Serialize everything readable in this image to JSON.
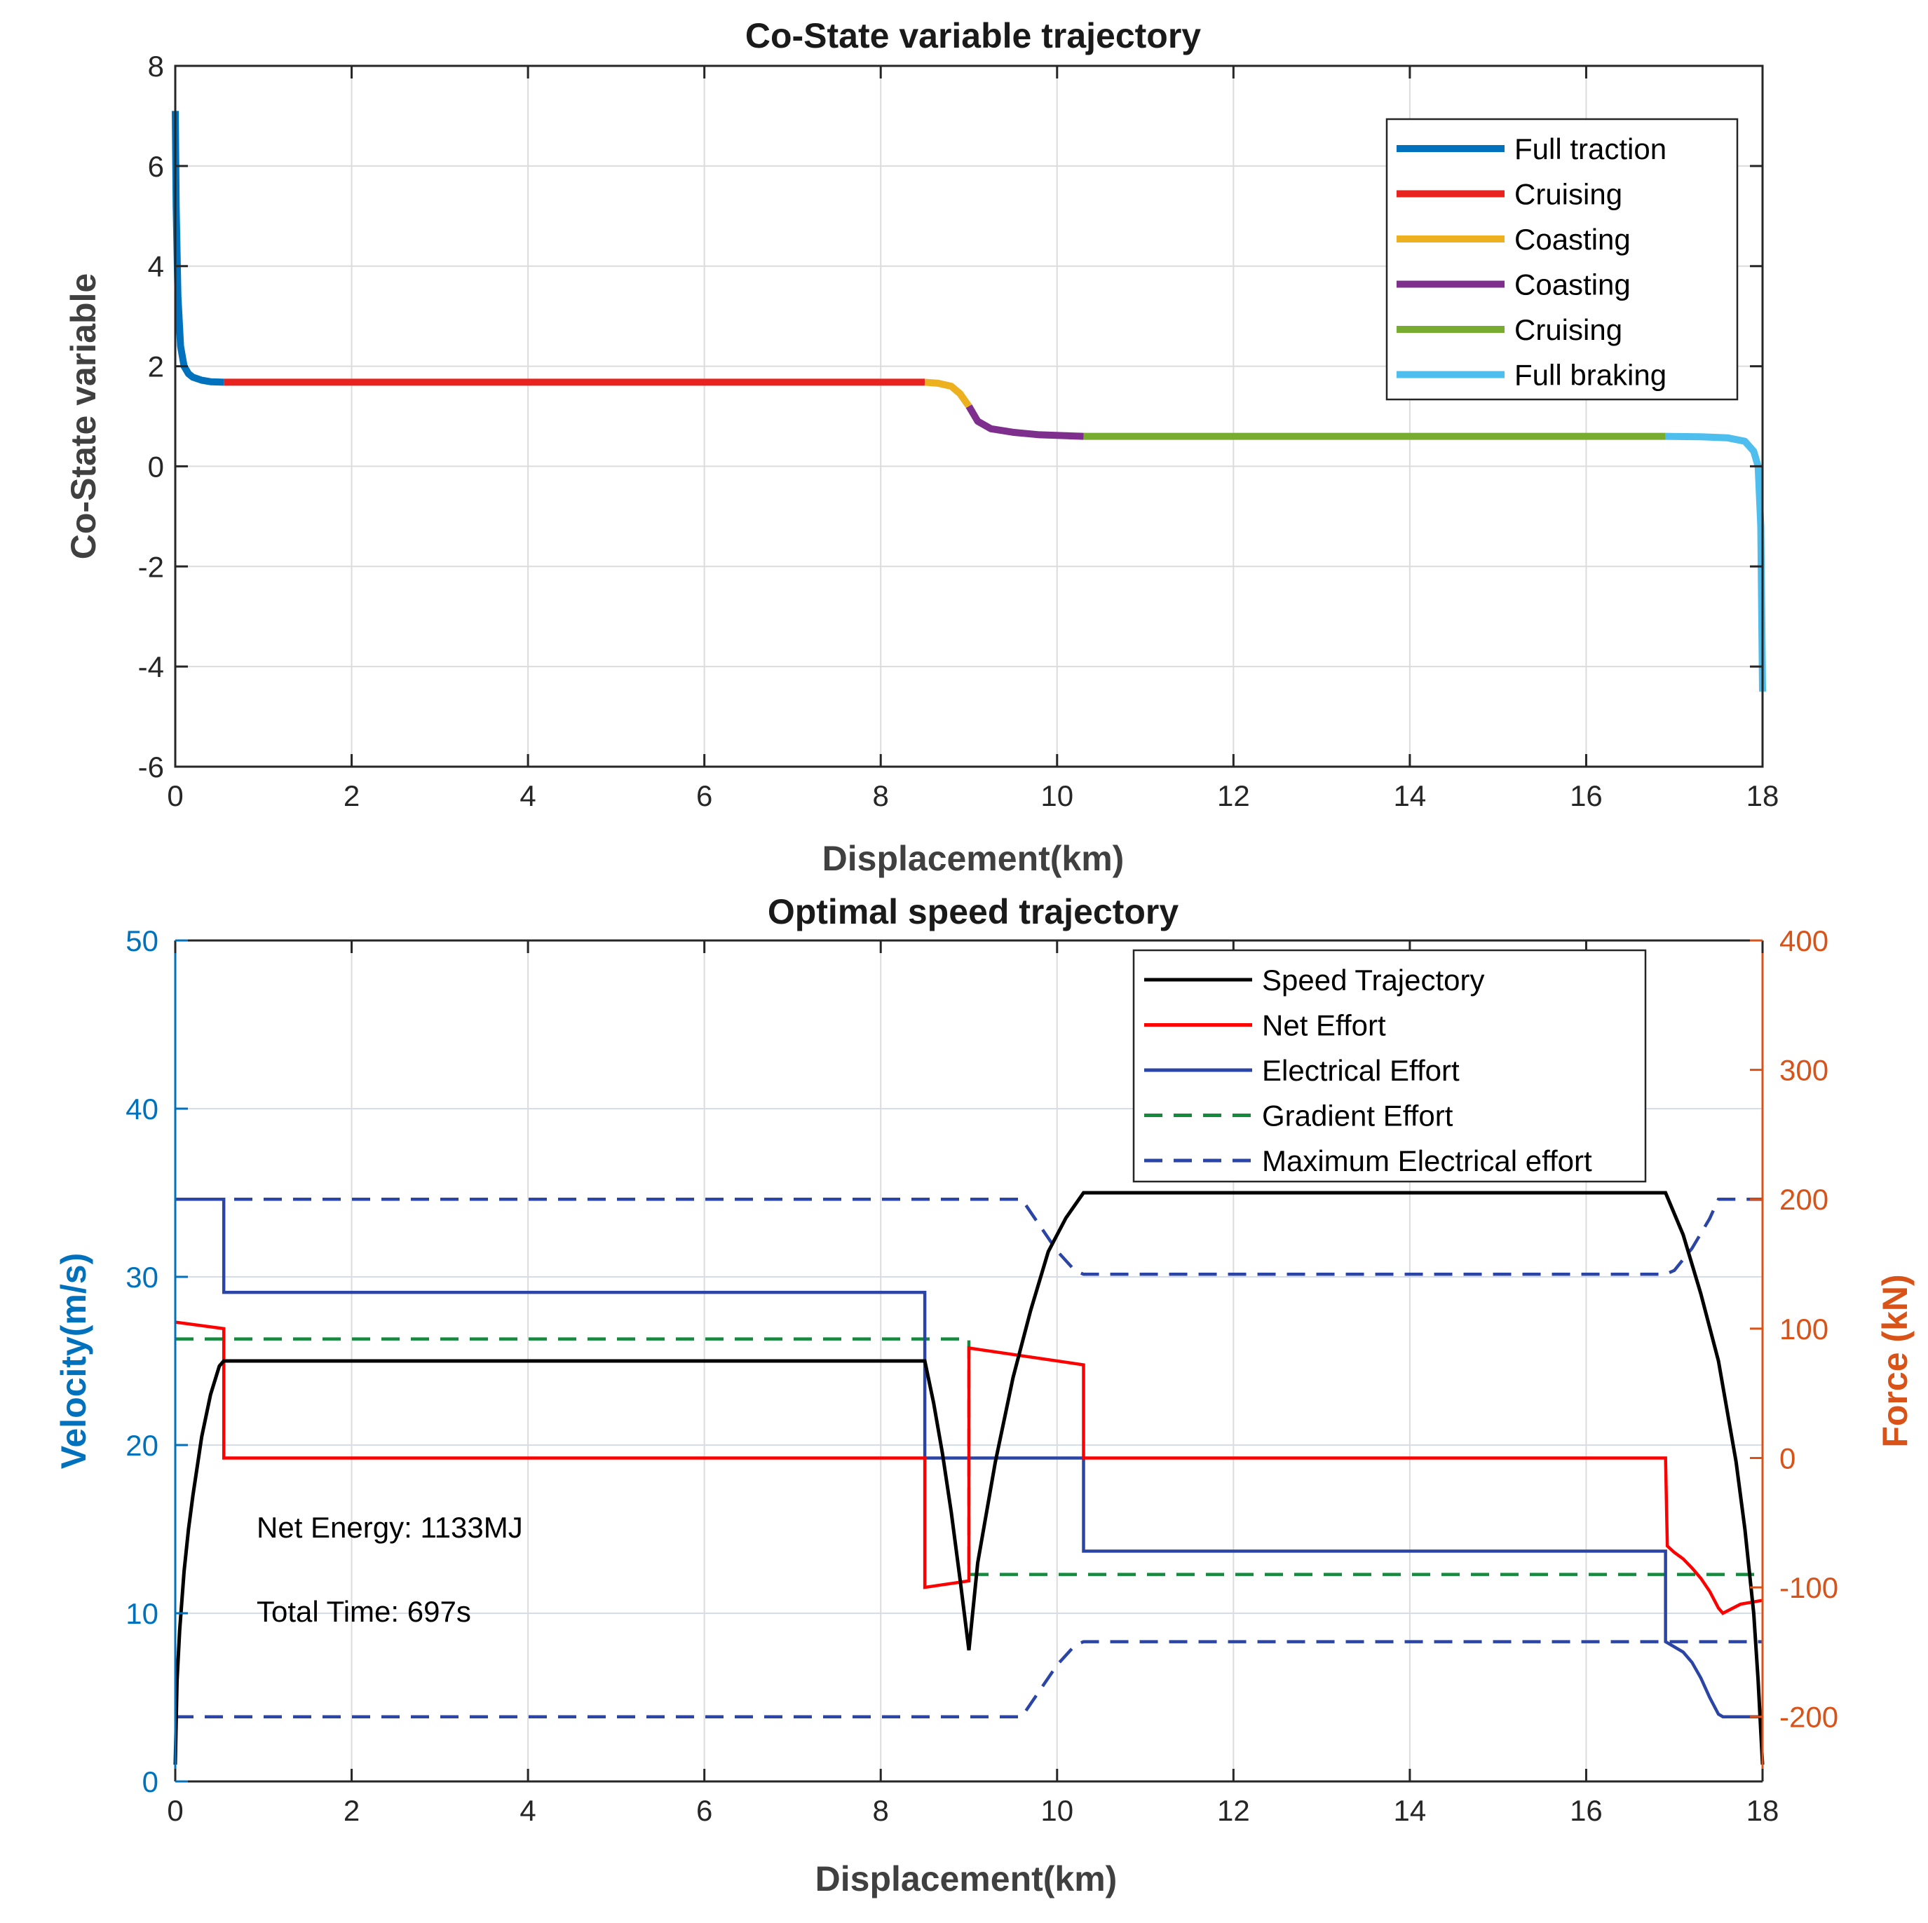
{
  "chart_data": [
    {
      "type": "line",
      "title": "Co-State variable trajectory",
      "xlabel": "Displacement(km)",
      "ylabel": "Co-State variable",
      "xlim": [
        0,
        18
      ],
      "ylim": [
        -6,
        8
      ],
      "xticks": [
        0,
        2,
        4,
        6,
        8,
        10,
        12,
        14,
        16,
        18
      ],
      "yticks": [
        -6,
        -4,
        -2,
        0,
        2,
        4,
        6,
        8
      ],
      "grid": true,
      "legend_position": "top-right",
      "series": [
        {
          "name": "Full traction",
          "color": "#0072BD",
          "x": [
            0,
            0.01,
            0.03,
            0.06,
            0.1,
            0.15,
            0.2,
            0.3,
            0.4,
            0.55
          ],
          "y": [
            7.1,
            5.2,
            3.4,
            2.4,
            2.0,
            1.85,
            1.78,
            1.72,
            1.69,
            1.68
          ]
        },
        {
          "name": "Cruising",
          "color": "#E8231F",
          "x": [
            0.55,
            8.5
          ],
          "y": [
            1.68,
            1.68
          ]
        },
        {
          "name": "Coasting",
          "color": "#EDB120",
          "x": [
            8.5,
            8.65,
            8.8,
            8.9,
            9.0
          ],
          "y": [
            1.68,
            1.66,
            1.6,
            1.45,
            1.2
          ]
        },
        {
          "name": "Coasting",
          "color": "#7E2F8E",
          "x": [
            9.0,
            9.1,
            9.25,
            9.5,
            9.8,
            10.3
          ],
          "y": [
            1.2,
            0.9,
            0.75,
            0.68,
            0.63,
            0.6
          ]
        },
        {
          "name": "Cruising",
          "color": "#77AC30",
          "x": [
            10.3,
            16.9
          ],
          "y": [
            0.6,
            0.6
          ]
        },
        {
          "name": "Full braking",
          "color": "#4DBEEE",
          "x": [
            16.9,
            17.3,
            17.6,
            17.8,
            17.9,
            17.95,
            17.98,
            18.0
          ],
          "y": [
            0.6,
            0.59,
            0.57,
            0.5,
            0.3,
            0.0,
            -1.2,
            -4.5
          ]
        }
      ]
    },
    {
      "type": "line",
      "title": "Optimal speed trajectory",
      "xlabel": "Displacement(km)",
      "ylabel_left": "Velocity(m/s)",
      "ylabel_right": "Force (kN)",
      "xlim": [
        0,
        18
      ],
      "ylim_left": [
        0,
        50
      ],
      "ylim_right": [
        -250,
        400
      ],
      "xticks": [
        0,
        2,
        4,
        6,
        8,
        10,
        12,
        14,
        16,
        18
      ],
      "yticks_left": [
        0,
        10,
        20,
        30,
        40,
        50
      ],
      "yticks_right": [
        -200,
        -100,
        0,
        100,
        200,
        300,
        400
      ],
      "grid": true,
      "legend_position": "top-right",
      "annotations": [
        "Net Energy: 1133MJ",
        "Total Time: 697s"
      ],
      "series": [
        {
          "name": "Speed Trajectory",
          "axis": "left",
          "color": "#000000",
          "dash": "solid",
          "x": [
            0,
            0.02,
            0.05,
            0.1,
            0.15,
            0.2,
            0.3,
            0.4,
            0.5,
            0.55,
            8.5,
            8.6,
            8.7,
            8.8,
            8.9,
            9.0,
            9.1,
            9.3,
            9.5,
            9.7,
            9.9,
            10.1,
            10.3,
            16.9,
            17.1,
            17.3,
            17.5,
            17.7,
            17.8,
            17.9,
            17.95,
            18.0
          ],
          "y": [
            1,
            6,
            9,
            12.5,
            15,
            17,
            20.5,
            23,
            24.7,
            25,
            25,
            22.5,
            19.5,
            16,
            12,
            7.8,
            13,
            19,
            24,
            28,
            31.5,
            33.5,
            35,
            35,
            32.5,
            29,
            25,
            19,
            15,
            10,
            6,
            1
          ]
        },
        {
          "name": "Net Effort",
          "axis": "right",
          "color": "#FF0000",
          "dash": "solid",
          "x": [
            0,
            0.55,
            0.55,
            8.5,
            8.5,
            9.0,
            9.0,
            10.3,
            10.3,
            16.9,
            16.92,
            17.0,
            17.1,
            17.2,
            17.3,
            17.4,
            17.5,
            17.55,
            17.75,
            18.0
          ],
          "y": [
            105,
            100,
            0,
            0,
            -100,
            -95,
            85,
            72,
            0,
            0,
            -68,
            -73,
            -78,
            -85,
            -93,
            -103,
            -116,
            -120,
            -113,
            -110
          ]
        },
        {
          "name": "Electrical Effort",
          "axis": "right",
          "color": "#2B45A6",
          "dash": "solid",
          "x": [
            0,
            0.55,
            0.55,
            8.5,
            8.5,
            10.3,
            10.3,
            16.9,
            16.9,
            17.1,
            17.2,
            17.3,
            17.4,
            17.5,
            17.55,
            18.0
          ],
          "y": [
            200,
            200,
            128,
            128,
            0,
            0,
            -72,
            -72,
            -142,
            -150,
            -158,
            -170,
            -185,
            -198,
            -200,
            -200
          ]
        },
        {
          "name": "Gradient Effort",
          "axis": "right",
          "color": "#138A3C",
          "dash": "dashed",
          "x": [
            0,
            9.0,
            9.0,
            18.0
          ],
          "y": [
            92,
            92,
            -90,
            -90
          ]
        },
        {
          "name": "Maximum Electrical effort",
          "axis": "right",
          "color": "#2B45A6",
          "dash": "dashed",
          "x": [
            0,
            9.6,
            9.8,
            10.0,
            10.2,
            10.3,
            16.9,
            17.0,
            17.2,
            17.4,
            17.5,
            18.0
          ],
          "y": [
            200,
            200,
            180,
            160,
            145,
            142,
            142,
            145,
            162,
            185,
            200,
            200
          ]
        },
        {
          "name": "Maximum Electrical effort",
          "axis": "right",
          "color": "#2B45A6",
          "dash": "dashed",
          "show_in_legend": false,
          "x": [
            0,
            9.6,
            9.8,
            10.0,
            10.2,
            10.3,
            16.9,
            18.0
          ],
          "y": [
            -200,
            -200,
            -180,
            -160,
            -145,
            -142,
            -142,
            -142
          ]
        }
      ]
    }
  ]
}
